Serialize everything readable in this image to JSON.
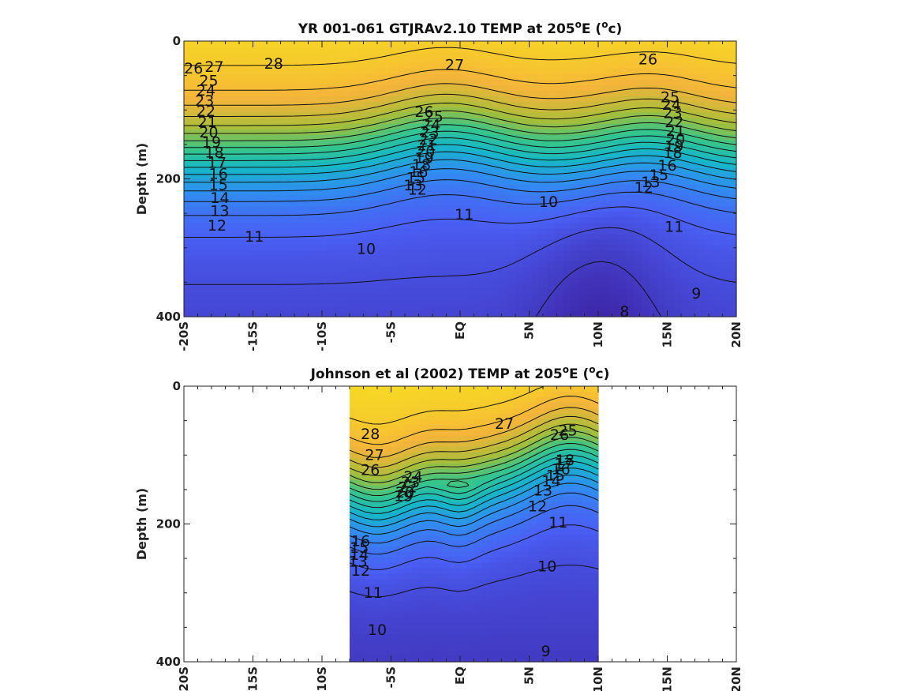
{
  "chart_data": [
    {
      "type": "heatmap",
      "title": "YR 001-061 GTJRAv2.10 TEMP at 205",
      "title_sup": "o",
      "title_tail": "E (",
      "title_unit_sup": "o",
      "title_unit": "c)",
      "ylabel": "Depth (m)",
      "xlabel": "",
      "xlim": [
        -20,
        20
      ],
      "ylim": [
        400,
        0
      ],
      "x_ticks": [
        -20,
        -15,
        -10,
        -5,
        0,
        5,
        10,
        15,
        20
      ],
      "x_tick_labels": [
        "-20S",
        "-15S",
        "-10S",
        "-5S",
        "EQ",
        "5N",
        "10N",
        "15N",
        "20N"
      ],
      "y_ticks": [
        0,
        200,
        400
      ],
      "y_tick_labels": [
        "0",
        "200",
        "400"
      ],
      "data_extent_lat": [
        -20,
        20
      ],
      "colormap": [
        "#3e26a8",
        "#4a5ff5",
        "#2f8ff0",
        "#16b7c7",
        "#35c58c",
        "#a5be3a",
        "#f5b43a",
        "#f7e11f"
      ],
      "contour_levels": [
        8,
        9,
        10,
        11,
        12,
        13,
        14,
        15,
        16,
        17,
        18,
        19,
        20,
        21,
        22,
        23,
        24,
        25,
        26,
        27,
        28
      ],
      "contour_labels": [
        {
          "text": "28",
          "lat": -13.5,
          "depth": 33
        },
        {
          "text": "27",
          "lat": -17.8,
          "depth": 38
        },
        {
          "text": "26",
          "lat": -19.3,
          "depth": 40
        },
        {
          "text": "27",
          "lat": -0.4,
          "depth": 35
        },
        {
          "text": "26",
          "lat": 13.6,
          "depth": 27
        },
        {
          "text": "25",
          "lat": -18.2,
          "depth": 58
        },
        {
          "text": "24",
          "lat": -18.4,
          "depth": 72
        },
        {
          "text": "23",
          "lat": -18.5,
          "depth": 87
        },
        {
          "text": "22",
          "lat": -18.4,
          "depth": 102
        },
        {
          "text": "21",
          "lat": -18.3,
          "depth": 118
        },
        {
          "text": "20",
          "lat": -18.2,
          "depth": 133
        },
        {
          "text": "19",
          "lat": -18.0,
          "depth": 147
        },
        {
          "text": "18",
          "lat": -17.8,
          "depth": 162
        },
        {
          "text": "17",
          "lat": -17.6,
          "depth": 177
        },
        {
          "text": "16",
          "lat": -17.5,
          "depth": 193
        },
        {
          "text": "15",
          "lat": -17.5,
          "depth": 209
        },
        {
          "text": "14",
          "lat": -17.4,
          "depth": 228
        },
        {
          "text": "13",
          "lat": -17.4,
          "depth": 247
        },
        {
          "text": "12",
          "lat": -17.6,
          "depth": 268
        },
        {
          "text": "11",
          "lat": -14.9,
          "depth": 284
        },
        {
          "text": "10",
          "lat": -6.8,
          "depth": 302
        },
        {
          "text": "26",
          "lat": -2.6,
          "depth": 103
        },
        {
          "text": "25",
          "lat": -1.9,
          "depth": 110
        },
        {
          "text": "24",
          "lat": -2.1,
          "depth": 122
        },
        {
          "text": "23",
          "lat": -2.2,
          "depth": 133
        },
        {
          "text": "22",
          "lat": -2.3,
          "depth": 143
        },
        {
          "text": "21",
          "lat": -2.4,
          "depth": 152
        },
        {
          "text": "20",
          "lat": -2.5,
          "depth": 161
        },
        {
          "text": "19",
          "lat": -2.6,
          "depth": 170
        },
        {
          "text": "18",
          "lat": -2.8,
          "depth": 180
        },
        {
          "text": "16",
          "lat": -3.0,
          "depth": 190
        },
        {
          "text": "15",
          "lat": -3.2,
          "depth": 199
        },
        {
          "text": "13",
          "lat": -3.4,
          "depth": 210
        },
        {
          "text": "12",
          "lat": -3.1,
          "depth": 216
        },
        {
          "text": "11",
          "lat": 0.3,
          "depth": 252
        },
        {
          "text": "10",
          "lat": 6.4,
          "depth": 234
        },
        {
          "text": "25",
          "lat": 15.2,
          "depth": 82
        },
        {
          "text": "24",
          "lat": 15.3,
          "depth": 93
        },
        {
          "text": "23",
          "lat": 15.4,
          "depth": 105
        },
        {
          "text": "22",
          "lat": 15.5,
          "depth": 118
        },
        {
          "text": "21",
          "lat": 15.6,
          "depth": 131
        },
        {
          "text": "20",
          "lat": 15.6,
          "depth": 143
        },
        {
          "text": "19",
          "lat": 15.5,
          "depth": 153
        },
        {
          "text": "18",
          "lat": 15.4,
          "depth": 163
        },
        {
          "text": "16",
          "lat": 15.0,
          "depth": 181
        },
        {
          "text": "15",
          "lat": 14.4,
          "depth": 195
        },
        {
          "text": "13",
          "lat": 13.8,
          "depth": 205
        },
        {
          "text": "12",
          "lat": 13.3,
          "depth": 213
        },
        {
          "text": "11",
          "lat": 15.5,
          "depth": 270
        },
        {
          "text": "9",
          "lat": 17.1,
          "depth": 367
        },
        {
          "text": "8",
          "lat": 11.9,
          "depth": 393
        }
      ]
    },
    {
      "type": "heatmap",
      "title": "Johnson et al (2002) TEMP at 205",
      "title_sup": "o",
      "title_tail": "E (",
      "title_unit_sup": "o",
      "title_unit": "c)",
      "ylabel": "Depth (m)",
      "xlabel": "",
      "xlim": [
        -20,
        20
      ],
      "ylim": [
        400,
        0
      ],
      "x_ticks": [
        -20,
        -15,
        -10,
        -5,
        0,
        5,
        10,
        15,
        20
      ],
      "x_tick_labels": [
        "-20S",
        "-15S",
        "-10S",
        "-5S",
        "EQ",
        "5N",
        "10N",
        "15N",
        "20N"
      ],
      "y_ticks": [
        0,
        200,
        400
      ],
      "y_tick_labels": [
        "0",
        "200",
        "400"
      ],
      "data_extent_lat": [
        -8,
        10
      ],
      "colormap": [
        "#3e26a8",
        "#4a5ff5",
        "#2f8ff0",
        "#16b7c7",
        "#35c58c",
        "#a5be3a",
        "#f5b43a",
        "#f7e11f"
      ],
      "contour_levels": [
        9,
        10,
        11,
        12,
        13,
        14,
        15,
        16,
        17,
        18,
        19,
        20,
        21,
        22,
        23,
        24,
        25,
        26,
        27,
        28
      ],
      "contour_labels": [
        {
          "text": "28",
          "lat": -6.5,
          "depth": 70
        },
        {
          "text": "27",
          "lat": -6.2,
          "depth": 100
        },
        {
          "text": "26",
          "lat": -6.5,
          "depth": 122
        },
        {
          "text": "27",
          "lat": 3.2,
          "depth": 55
        },
        {
          "text": "26",
          "lat": 7.2,
          "depth": 71
        },
        {
          "text": "25",
          "lat": 7.8,
          "depth": 65
        },
        {
          "text": "24",
          "lat": -3.4,
          "depth": 132
        },
        {
          "text": "23",
          "lat": -3.6,
          "depth": 140
        },
        {
          "text": "22",
          "lat": -3.8,
          "depth": 147
        },
        {
          "text": "20",
          "lat": -4.0,
          "depth": 155
        },
        {
          "text": "19",
          "lat": -4.1,
          "depth": 160
        },
        {
          "text": "18",
          "lat": 7.6,
          "depth": 108
        },
        {
          "text": "17",
          "lat": 7.5,
          "depth": 113
        },
        {
          "text": "16",
          "lat": 7.3,
          "depth": 121
        },
        {
          "text": "15",
          "lat": 6.9,
          "depth": 130
        },
        {
          "text": "14",
          "lat": 6.6,
          "depth": 138
        },
        {
          "text": "13",
          "lat": 6.0,
          "depth": 152
        },
        {
          "text": "12",
          "lat": 5.6,
          "depth": 175
        },
        {
          "text": "11",
          "lat": 7.1,
          "depth": 198
        },
        {
          "text": "16",
          "lat": -7.2,
          "depth": 225
        },
        {
          "text": "15",
          "lat": -7.3,
          "depth": 235
        },
        {
          "text": "14",
          "lat": -7.3,
          "depth": 245
        },
        {
          "text": "13",
          "lat": -7.4,
          "depth": 255
        },
        {
          "text": "12",
          "lat": -7.2,
          "depth": 268
        },
        {
          "text": "11",
          "lat": -6.3,
          "depth": 300
        },
        {
          "text": "10",
          "lat": -6.0,
          "depth": 354
        },
        {
          "text": "10",
          "lat": 6.3,
          "depth": 262
        },
        {
          "text": "9",
          "lat": 6.2,
          "depth": 385
        }
      ]
    }
  ]
}
